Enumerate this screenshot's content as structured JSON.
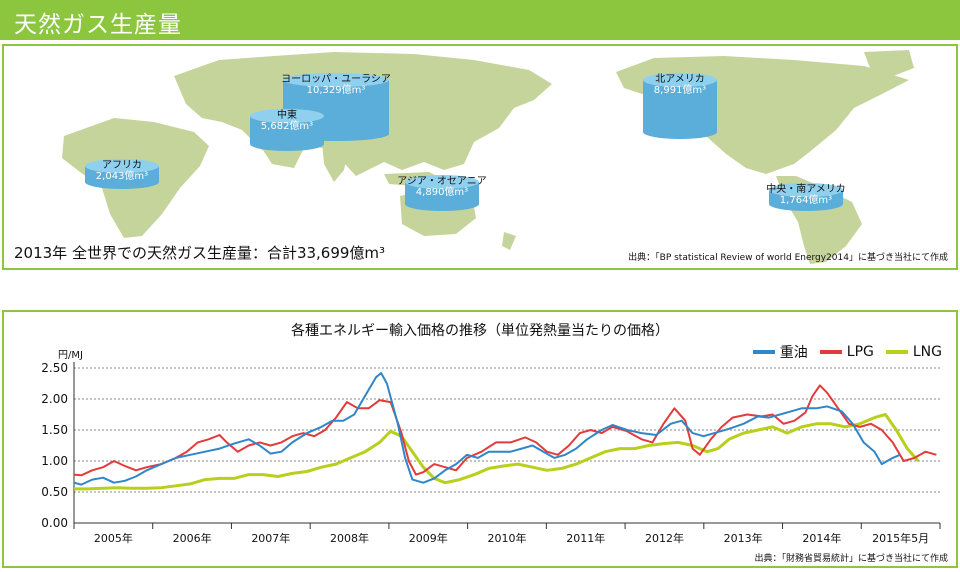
{
  "header": {
    "title": "天然ガス生産量"
  },
  "map": {
    "total_text": "2013年  全世界での天然ガス生産量：合計33,699億m³",
    "source": "出典：「BP statistical Review of world Energy2014」に基づき当社にて作成",
    "regions": [
      {
        "name": "ヨーロッパ・ユーラシア",
        "value": "10,329億m³"
      },
      {
        "name": "中東",
        "value": "5,682億m³"
      },
      {
        "name": "アフリカ",
        "value": "2,043億m³"
      },
      {
        "name": "アジア・オセアニア",
        "value": "4,890億m³"
      },
      {
        "name": "北アメリカ",
        "value": "8,991億m³"
      },
      {
        "name": "中央・南アメリカ",
        "value": "1,764億m³"
      }
    ],
    "colors": {
      "land": "#c5d49a",
      "cylinder": "#5aaed9",
      "cylinder_top": "#8fd0ee"
    }
  },
  "chart_data": {
    "type": "line",
    "title": "各種エネルギー輸入価格の推移（単位発熱量当たりの価格）",
    "ylabel": "円/MJ",
    "ylim": [
      0,
      2.5
    ],
    "yticks": [
      "0.00",
      "0.50",
      "1.00",
      "1.50",
      "2.00",
      "2.50"
    ],
    "x_start": 2005.0,
    "x_end": 2015.42,
    "categories": [
      "2005年",
      "2006年",
      "2007年",
      "2008年",
      "2009年",
      "2010年",
      "2011年",
      "2012年",
      "2013年",
      "2014年",
      "2015年5月"
    ],
    "source": "出典：「財務省貿易統計」に基づき当社にて作成",
    "series": [
      {
        "name": "重油",
        "color": "#2f86c8",
        "points": [
          [
            2005.0,
            0.65
          ],
          [
            2005.1,
            0.62
          ],
          [
            2005.25,
            0.7
          ],
          [
            2005.4,
            0.73
          ],
          [
            2005.55,
            0.65
          ],
          [
            2005.7,
            0.68
          ],
          [
            2005.85,
            0.75
          ],
          [
            2006.0,
            0.85
          ],
          [
            2006.2,
            0.95
          ],
          [
            2006.4,
            1.05
          ],
          [
            2006.6,
            1.1
          ],
          [
            2006.8,
            1.15
          ],
          [
            2007.0,
            1.2
          ],
          [
            2007.2,
            1.28
          ],
          [
            2007.4,
            1.35
          ],
          [
            2007.55,
            1.25
          ],
          [
            2007.7,
            1.12
          ],
          [
            2007.85,
            1.15
          ],
          [
            2008.0,
            1.3
          ],
          [
            2008.2,
            1.45
          ],
          [
            2008.4,
            1.55
          ],
          [
            2008.55,
            1.65
          ],
          [
            2008.7,
            1.65
          ],
          [
            2008.85,
            1.75
          ],
          [
            2009.0,
            2.05
          ],
          [
            2009.15,
            2.35
          ],
          [
            2009.22,
            2.42
          ],
          [
            2009.3,
            2.25
          ],
          [
            2009.45,
            1.6
          ],
          [
            2009.55,
            1.05
          ],
          [
            2009.65,
            0.7
          ],
          [
            2009.8,
            0.65
          ],
          [
            2009.95,
            0.72
          ],
          [
            2010.1,
            0.85
          ],
          [
            2010.25,
            0.95
          ],
          [
            2010.4,
            1.1
          ],
          [
            2010.55,
            1.05
          ],
          [
            2010.7,
            1.15
          ],
          [
            2010.85,
            1.15
          ],
          [
            2011.0,
            1.15
          ],
          [
            2011.15,
            1.2
          ],
          [
            2011.3,
            1.25
          ],
          [
            2011.45,
            1.15
          ],
          [
            2011.6,
            1.05
          ],
          [
            2011.75,
            1.1
          ],
          [
            2011.9,
            1.2
          ],
          [
            2012.05,
            1.35
          ],
          [
            2012.25,
            1.5
          ],
          [
            2012.4,
            1.58
          ],
          [
            2012.6,
            1.5
          ],
          [
            2012.8,
            1.45
          ],
          [
            2013.0,
            1.42
          ],
          [
            2013.2,
            1.6
          ],
          [
            2013.35,
            1.65
          ],
          [
            2013.5,
            1.45
          ],
          [
            2013.65,
            1.4
          ],
          [
            2013.8,
            1.45
          ],
          [
            2014.0,
            1.52
          ],
          [
            2014.2,
            1.6
          ],
          [
            2014.4,
            1.72
          ],
          [
            2014.55,
            1.7
          ],
          [
            2014.7,
            1.75
          ],
          [
            2014.85,
            1.8
          ],
          [
            2015.0,
            1.85
          ],
          [
            2015.2,
            1.85
          ],
          [
            2015.35,
            1.88
          ],
          [
            2015.55,
            1.8
          ],
          [
            2015.7,
            1.6
          ],
          [
            2015.85,
            1.3
          ],
          [
            2016.0,
            1.15
          ],
          [
            2016.1,
            0.95
          ],
          [
            2016.25,
            1.05
          ],
          [
            2016.35,
            1.1
          ]
        ]
      },
      {
        "name": "LPG",
        "color": "#e23b3b",
        "points": [
          [
            2005.0,
            0.78
          ],
          [
            2005.1,
            0.77
          ],
          [
            2005.25,
            0.85
          ],
          [
            2005.4,
            0.9
          ],
          [
            2005.55,
            1.0
          ],
          [
            2005.7,
            0.92
          ],
          [
            2005.85,
            0.85
          ],
          [
            2006.0,
            0.9
          ],
          [
            2006.2,
            0.95
          ],
          [
            2006.4,
            1.05
          ],
          [
            2006.55,
            1.15
          ],
          [
            2006.7,
            1.3
          ],
          [
            2006.85,
            1.35
          ],
          [
            2007.0,
            1.42
          ],
          [
            2007.1,
            1.3
          ],
          [
            2007.25,
            1.15
          ],
          [
            2007.4,
            1.25
          ],
          [
            2007.55,
            1.3
          ],
          [
            2007.7,
            1.25
          ],
          [
            2007.85,
            1.3
          ],
          [
            2008.0,
            1.4
          ],
          [
            2008.15,
            1.45
          ],
          [
            2008.3,
            1.4
          ],
          [
            2008.45,
            1.5
          ],
          [
            2008.6,
            1.7
          ],
          [
            2008.75,
            1.95
          ],
          [
            2008.9,
            1.85
          ],
          [
            2009.05,
            1.85
          ],
          [
            2009.2,
            1.98
          ],
          [
            2009.35,
            1.95
          ],
          [
            2009.5,
            1.45
          ],
          [
            2009.6,
            1.0
          ],
          [
            2009.7,
            0.78
          ],
          [
            2009.8,
            0.82
          ],
          [
            2009.95,
            0.95
          ],
          [
            2010.1,
            0.9
          ],
          [
            2010.25,
            0.85
          ],
          [
            2010.4,
            1.05
          ],
          [
            2010.6,
            1.15
          ],
          [
            2010.8,
            1.3
          ],
          [
            2011.0,
            1.3
          ],
          [
            2011.2,
            1.38
          ],
          [
            2011.35,
            1.3
          ],
          [
            2011.5,
            1.15
          ],
          [
            2011.65,
            1.1
          ],
          [
            2011.8,
            1.25
          ],
          [
            2011.95,
            1.45
          ],
          [
            2012.1,
            1.5
          ],
          [
            2012.25,
            1.45
          ],
          [
            2012.4,
            1.55
          ],
          [
            2012.6,
            1.48
          ],
          [
            2012.8,
            1.35
          ],
          [
            2012.95,
            1.3
          ],
          [
            2013.1,
            1.6
          ],
          [
            2013.25,
            1.85
          ],
          [
            2013.4,
            1.65
          ],
          [
            2013.5,
            1.2
          ],
          [
            2013.6,
            1.1
          ],
          [
            2013.75,
            1.35
          ],
          [
            2013.9,
            1.55
          ],
          [
            2014.05,
            1.7
          ],
          [
            2014.25,
            1.75
          ],
          [
            2014.45,
            1.72
          ],
          [
            2014.6,
            1.75
          ],
          [
            2014.75,
            1.6
          ],
          [
            2014.9,
            1.65
          ],
          [
            2015.05,
            1.78
          ],
          [
            2015.15,
            2.05
          ],
          [
            2015.25,
            2.22
          ],
          [
            2015.35,
            2.1
          ],
          [
            2015.5,
            1.85
          ],
          [
            2015.65,
            1.6
          ],
          [
            2015.8,
            1.55
          ],
          [
            2015.95,
            1.6
          ],
          [
            2016.1,
            1.5
          ],
          [
            2016.25,
            1.3
          ],
          [
            2016.4,
            1.0
          ],
          [
            2016.55,
            1.05
          ],
          [
            2016.7,
            1.15
          ],
          [
            2016.85,
            1.1
          ]
        ]
      },
      {
        "name": "LNG",
        "color": "#b8cf1c",
        "points": [
          [
            2005.0,
            0.55
          ],
          [
            2005.2,
            0.55
          ],
          [
            2005.4,
            0.56
          ],
          [
            2005.6,
            0.57
          ],
          [
            2005.8,
            0.56
          ],
          [
            2006.0,
            0.56
          ],
          [
            2006.2,
            0.57
          ],
          [
            2006.4,
            0.6
          ],
          [
            2006.6,
            0.63
          ],
          [
            2006.8,
            0.7
          ],
          [
            2007.0,
            0.72
          ],
          [
            2007.2,
            0.72
          ],
          [
            2007.4,
            0.78
          ],
          [
            2007.6,
            0.78
          ],
          [
            2007.8,
            0.75
          ],
          [
            2008.0,
            0.8
          ],
          [
            2008.2,
            0.83
          ],
          [
            2008.4,
            0.9
          ],
          [
            2008.6,
            0.95
          ],
          [
            2008.8,
            1.05
          ],
          [
            2009.0,
            1.15
          ],
          [
            2009.2,
            1.3
          ],
          [
            2009.35,
            1.48
          ],
          [
            2009.5,
            1.4
          ],
          [
            2009.65,
            1.15
          ],
          [
            2009.8,
            0.9
          ],
          [
            2009.95,
            0.72
          ],
          [
            2010.1,
            0.65
          ],
          [
            2010.3,
            0.7
          ],
          [
            2010.5,
            0.78
          ],
          [
            2010.7,
            0.88
          ],
          [
            2010.9,
            0.92
          ],
          [
            2011.1,
            0.95
          ],
          [
            2011.3,
            0.9
          ],
          [
            2011.5,
            0.85
          ],
          [
            2011.7,
            0.88
          ],
          [
            2011.9,
            0.95
          ],
          [
            2012.1,
            1.05
          ],
          [
            2012.3,
            1.15
          ],
          [
            2012.5,
            1.2
          ],
          [
            2012.7,
            1.2
          ],
          [
            2012.9,
            1.25
          ],
          [
            2013.1,
            1.28
          ],
          [
            2013.3,
            1.3
          ],
          [
            2013.5,
            1.25
          ],
          [
            2013.7,
            1.15
          ],
          [
            2013.85,
            1.2
          ],
          [
            2014.0,
            1.35
          ],
          [
            2014.2,
            1.45
          ],
          [
            2014.4,
            1.5
          ],
          [
            2014.6,
            1.55
          ],
          [
            2014.8,
            1.45
          ],
          [
            2015.0,
            1.55
          ],
          [
            2015.2,
            1.6
          ],
          [
            2015.4,
            1.6
          ],
          [
            2015.6,
            1.55
          ],
          [
            2015.8,
            1.6
          ],
          [
            2016.0,
            1.7
          ],
          [
            2016.15,
            1.75
          ],
          [
            2016.3,
            1.5
          ],
          [
            2016.45,
            1.2
          ],
          [
            2016.6,
            1.0
          ]
        ]
      }
    ]
  }
}
